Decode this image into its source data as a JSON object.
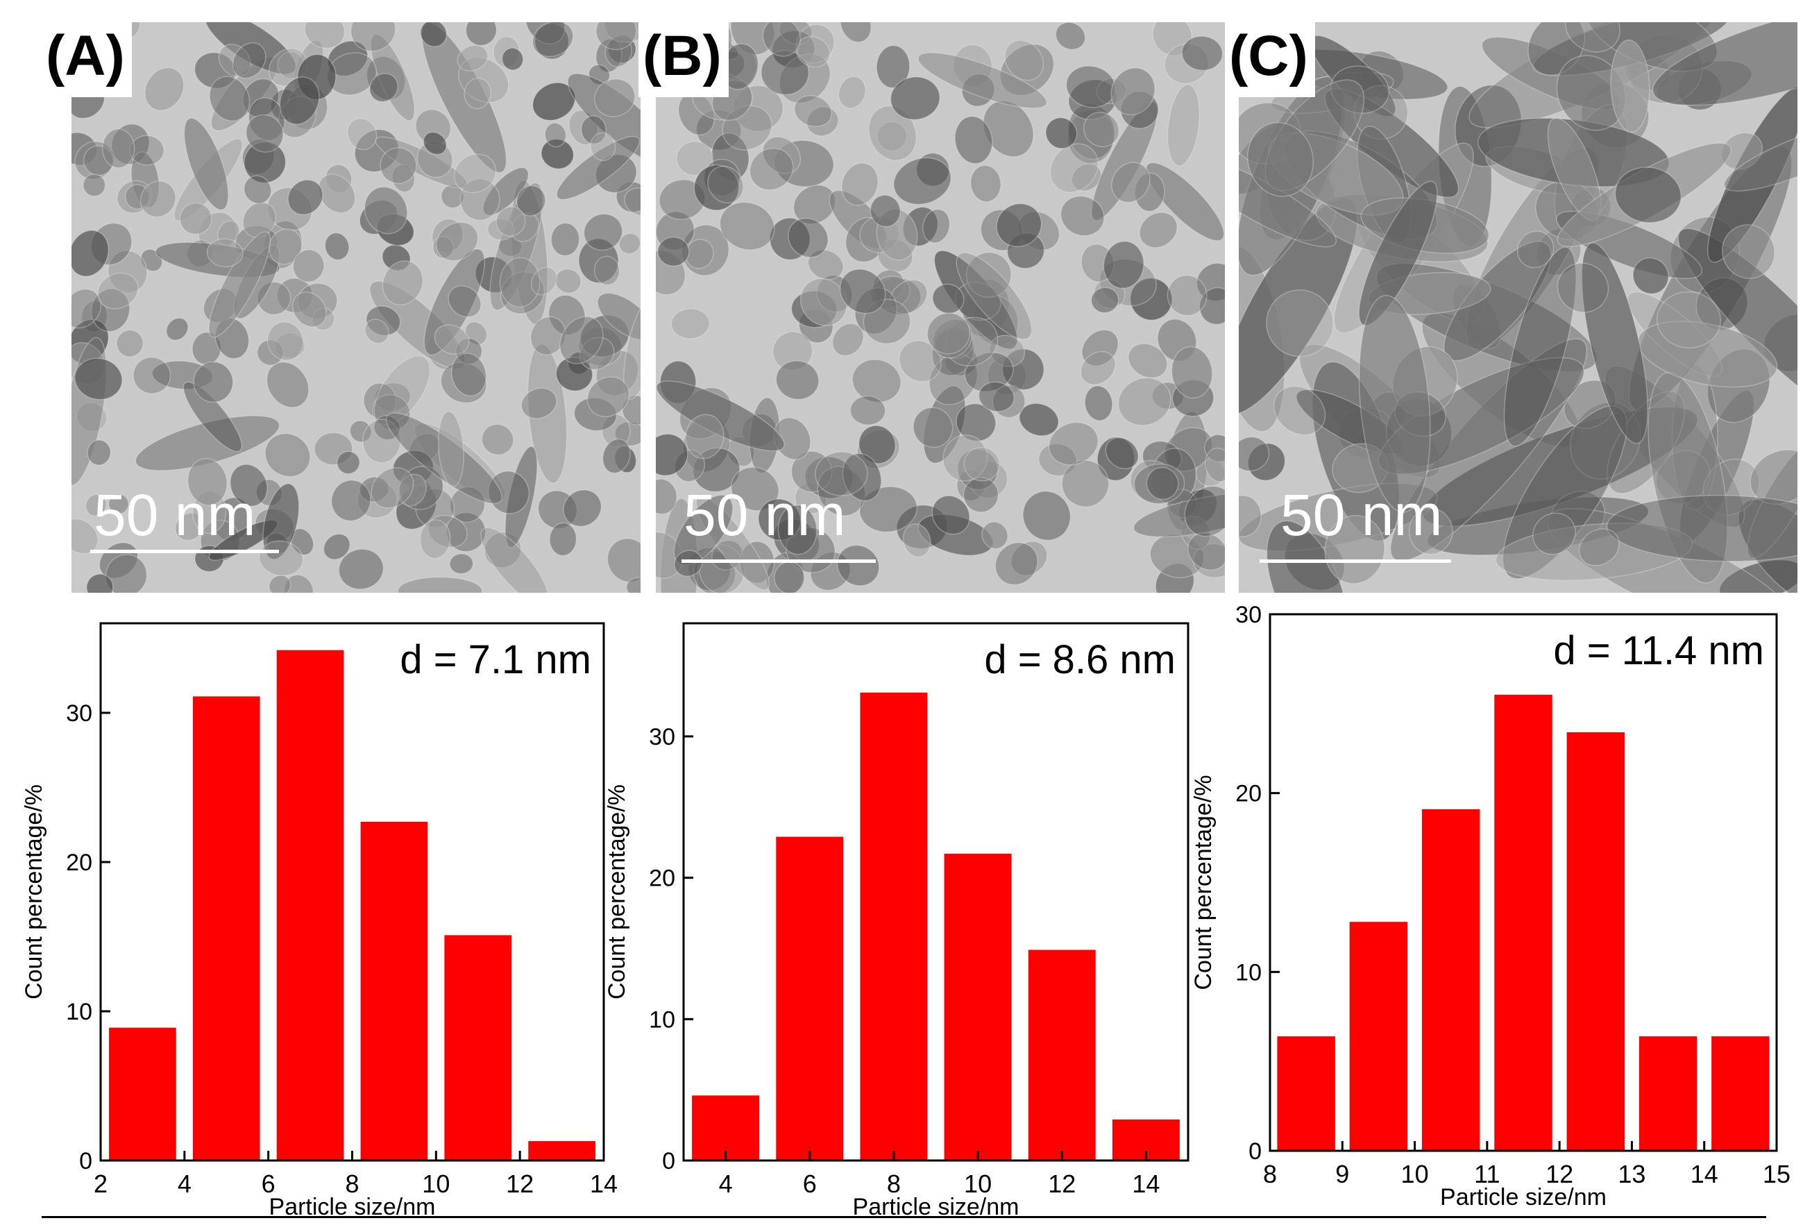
{
  "panels": [
    {
      "label": "(A)",
      "scale_text": "50 nm"
    },
    {
      "label": "(B)",
      "scale_text": "50 nm"
    },
    {
      "label": "(C)",
      "scale_text": "50 nm"
    }
  ],
  "colors": {
    "bar": "#ff0000",
    "axis": "#000000"
  },
  "chart_data": [
    {
      "type": "bar",
      "annotation": "d = 7.1 nm",
      "xlabel": "Particle size/nm",
      "ylabel": "Count percentage/%",
      "xlim": [
        2,
        14
      ],
      "ylim": [
        0,
        36
      ],
      "xticks": [
        2,
        4,
        6,
        8,
        10,
        12,
        14
      ],
      "yticks": [
        0,
        10,
        20,
        30
      ],
      "bar_width": 1.6,
      "x": [
        3,
        5,
        7,
        9,
        11,
        13
      ],
      "values": [
        8.9,
        31.1,
        34.2,
        22.7,
        15.1,
        1.3
      ]
    },
    {
      "type": "bar",
      "annotation": "d = 8.6 nm",
      "xlabel": "Particle size/nm",
      "ylabel": "Count percentage/%",
      "xlim": [
        3,
        15
      ],
      "ylim": [
        0,
        38
      ],
      "xticks": [
        4,
        6,
        8,
        10,
        12,
        14
      ],
      "yticks": [
        0,
        10,
        20,
        30
      ],
      "bar_width": 1.6,
      "x": [
        4,
        6,
        8,
        10,
        12,
        14
      ],
      "values": [
        4.6,
        22.9,
        33.1,
        21.7,
        14.9,
        2.9
      ]
    },
    {
      "type": "bar",
      "annotation": "d = 11.4 nm",
      "xlabel": "Particle size/nm",
      "ylabel": "Count percentage/%",
      "xlim": [
        8,
        15
      ],
      "ylim": [
        0,
        30
      ],
      "xticks": [
        8,
        9,
        10,
        11,
        12,
        13,
        14,
        15
      ],
      "yticks": [
        0,
        10,
        20,
        30
      ],
      "bar_width": 0.8,
      "x": [
        8.5,
        9.5,
        10.5,
        11.5,
        12.5,
        13.5,
        14.5
      ],
      "values": [
        6.4,
        12.8,
        19.1,
        25.5,
        23.4,
        6.4,
        6.4
      ]
    }
  ]
}
